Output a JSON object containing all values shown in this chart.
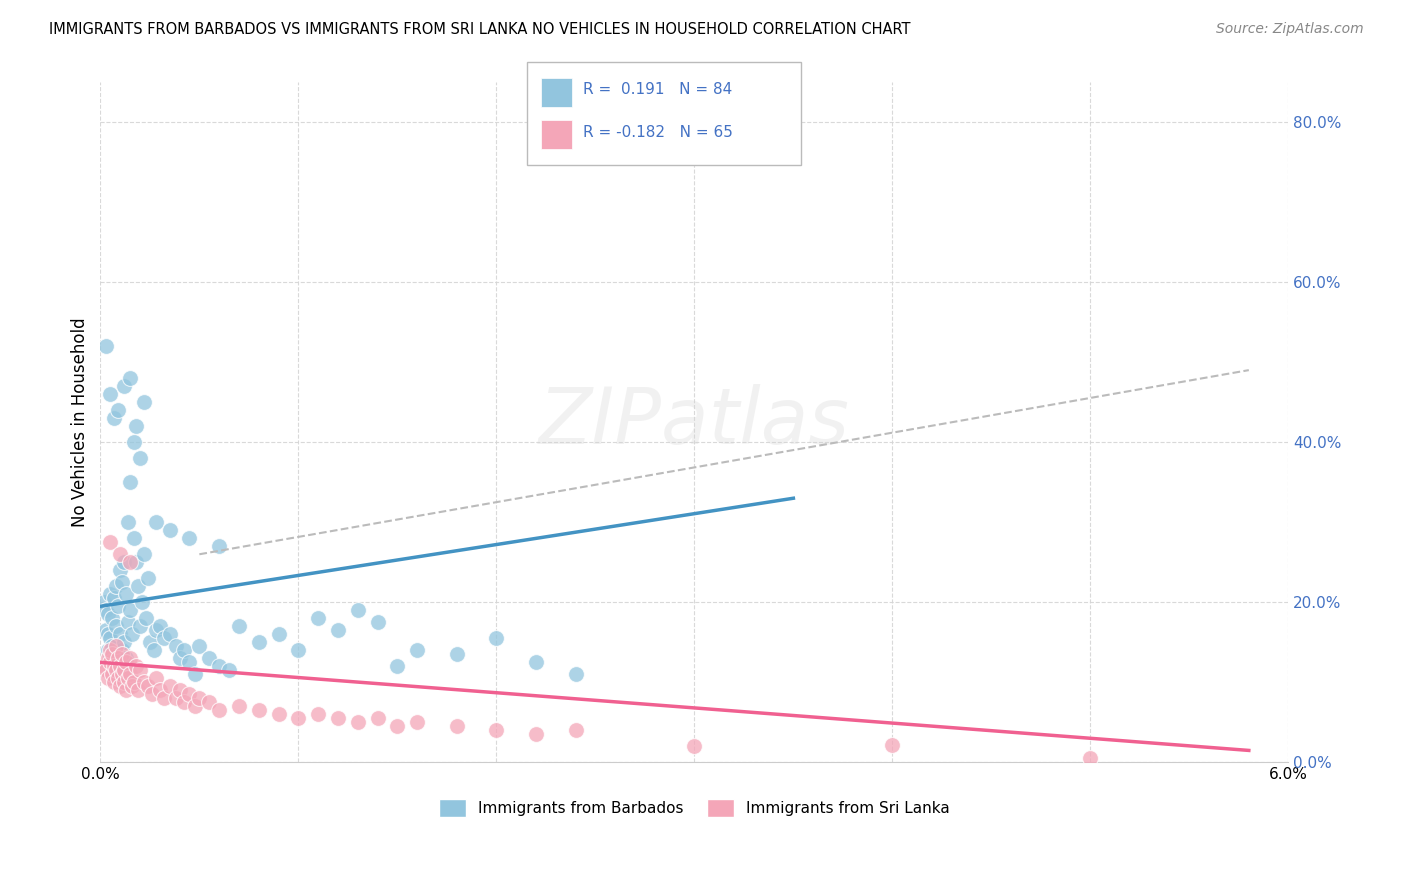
{
  "title": "IMMIGRANTS FROM BARBADOS VS IMMIGRANTS FROM SRI LANKA NO VEHICLES IN HOUSEHOLD CORRELATION CHART",
  "source": "Source: ZipAtlas.com",
  "ylabel": "No Vehicles in Household",
  "color_blue": "#92c5de",
  "color_pink": "#f4a6b8",
  "color_blue_line": "#4393c3",
  "color_pink_line": "#f06090",
  "color_dashed": "#bbbbbb",
  "barbados_x": [
    0.02,
    0.03,
    0.03,
    0.04,
    0.04,
    0.04,
    0.05,
    0.05,
    0.05,
    0.06,
    0.06,
    0.06,
    0.07,
    0.07,
    0.08,
    0.08,
    0.08,
    0.09,
    0.09,
    0.1,
    0.1,
    0.1,
    0.11,
    0.11,
    0.12,
    0.12,
    0.13,
    0.13,
    0.14,
    0.14,
    0.15,
    0.15,
    0.16,
    0.17,
    0.17,
    0.18,
    0.19,
    0.2,
    0.2,
    0.21,
    0.22,
    0.23,
    0.24,
    0.25,
    0.27,
    0.28,
    0.3,
    0.32,
    0.35,
    0.38,
    0.4,
    0.42,
    0.45,
    0.48,
    0.5,
    0.55,
    0.6,
    0.65,
    0.7,
    0.8,
    0.9,
    1.0,
    1.1,
    1.2,
    1.3,
    1.4,
    1.5,
    1.6,
    1.8,
    2.0,
    2.2,
    2.4,
    0.03,
    0.05,
    0.07,
    0.09,
    0.12,
    0.15,
    0.18,
    0.22,
    0.28,
    0.35,
    0.45,
    0.6
  ],
  "barbados_y": [
    20.0,
    16.5,
    19.0,
    14.0,
    16.0,
    18.5,
    13.0,
    15.5,
    21.0,
    12.0,
    14.5,
    18.0,
    11.5,
    20.5,
    12.5,
    17.0,
    22.0,
    13.5,
    19.5,
    11.0,
    16.0,
    24.0,
    14.0,
    22.5,
    15.0,
    25.0,
    13.0,
    21.0,
    17.5,
    30.0,
    19.0,
    35.0,
    16.0,
    28.0,
    40.0,
    25.0,
    22.0,
    17.0,
    38.0,
    20.0,
    26.0,
    18.0,
    23.0,
    15.0,
    14.0,
    16.5,
    17.0,
    15.5,
    16.0,
    14.5,
    13.0,
    14.0,
    12.5,
    11.0,
    14.5,
    13.0,
    12.0,
    11.5,
    17.0,
    15.0,
    16.0,
    14.0,
    18.0,
    16.5,
    19.0,
    17.5,
    12.0,
    14.0,
    13.5,
    15.5,
    12.5,
    11.0,
    52.0,
    46.0,
    43.0,
    44.0,
    47.0,
    48.0,
    42.0,
    45.0,
    30.0,
    29.0,
    28.0,
    27.0
  ],
  "srilanka_x": [
    0.02,
    0.03,
    0.04,
    0.04,
    0.05,
    0.05,
    0.06,
    0.06,
    0.07,
    0.07,
    0.08,
    0.08,
    0.09,
    0.09,
    0.1,
    0.1,
    0.11,
    0.11,
    0.12,
    0.12,
    0.13,
    0.13,
    0.14,
    0.15,
    0.15,
    0.16,
    0.17,
    0.18,
    0.19,
    0.2,
    0.22,
    0.24,
    0.26,
    0.28,
    0.3,
    0.32,
    0.35,
    0.38,
    0.4,
    0.42,
    0.45,
    0.48,
    0.5,
    0.55,
    0.6,
    0.7,
    0.8,
    0.9,
    1.0,
    1.1,
    1.2,
    1.3,
    1.4,
    1.5,
    1.6,
    1.8,
    2.0,
    2.2,
    2.4,
    3.0,
    4.0,
    5.0,
    0.05,
    0.1,
    0.15
  ],
  "srilanka_y": [
    12.0,
    11.5,
    13.0,
    10.5,
    12.5,
    14.0,
    11.0,
    13.5,
    10.0,
    12.0,
    11.5,
    14.5,
    10.5,
    13.0,
    9.5,
    12.0,
    11.0,
    13.5,
    10.0,
    11.5,
    9.0,
    12.5,
    10.5,
    11.0,
    13.0,
    9.5,
    10.0,
    12.0,
    9.0,
    11.5,
    10.0,
    9.5,
    8.5,
    10.5,
    9.0,
    8.0,
    9.5,
    8.0,
    9.0,
    7.5,
    8.5,
    7.0,
    8.0,
    7.5,
    6.5,
    7.0,
    6.5,
    6.0,
    5.5,
    6.0,
    5.5,
    5.0,
    5.5,
    4.5,
    5.0,
    4.5,
    4.0,
    3.5,
    4.0,
    2.0,
    2.2,
    0.5,
    27.5,
    26.0,
    25.0
  ],
  "blue_line_x": [
    0.0,
    3.5
  ],
  "blue_line_y": [
    19.5,
    33.0
  ],
  "pink_line_x": [
    0.0,
    5.8
  ],
  "pink_line_y": [
    12.5,
    1.5
  ],
  "dashed_line_x": [
    0.5,
    5.8
  ],
  "dashed_line_y": [
    26.0,
    49.0
  ],
  "xlim": [
    0.0,
    6.0
  ],
  "ylim": [
    0.0,
    85.0
  ],
  "yticks": [
    0,
    20,
    40,
    60,
    80
  ],
  "ytick_labels": [
    "0.0%",
    "20.0%",
    "40.0%",
    "60.0%",
    "80.0%"
  ],
  "xtick_labels": [
    "0.0%",
    "",
    "",
    "",
    "",
    "",
    "6.0%"
  ]
}
